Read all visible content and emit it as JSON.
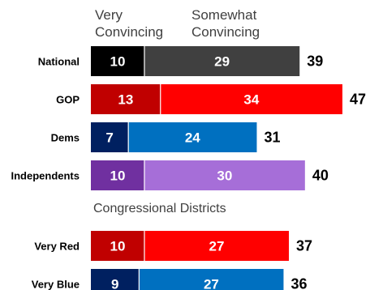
{
  "chart_data": {
    "type": "bar",
    "orientation": "horizontal",
    "stacked": true,
    "legend": {
      "position": "top",
      "entries": [
        {
          "lines": [
            "Very",
            "Convincing"
          ],
          "key": "very"
        },
        {
          "lines": [
            "Somewhat",
            "Convincing"
          ],
          "key": "somewhat"
        }
      ]
    },
    "groups": [
      {
        "title": "",
        "rows": [
          {
            "label": "National",
            "very": 10,
            "somewhat": 29,
            "total": 39,
            "colors": {
              "very": "#000000",
              "somewhat": "#404040"
            }
          },
          {
            "label": "GOP",
            "very": 13,
            "somewhat": 34,
            "total": 47,
            "colors": {
              "very": "#c00000",
              "somewhat": "#ff0000"
            }
          },
          {
            "label": "Dems",
            "very": 7,
            "somewhat": 24,
            "total": 31,
            "colors": {
              "very": "#002060",
              "somewhat": "#0070c0"
            }
          },
          {
            "label": "Independents",
            "very": 10,
            "somewhat": 30,
            "total": 40,
            "colors": {
              "very": "#7030a0",
              "somewhat": "#a66ed8"
            }
          }
        ]
      },
      {
        "title": "Congressional Districts",
        "rows": [
          {
            "label": "Very Red",
            "very": 10,
            "somewhat": 27,
            "total": 37,
            "colors": {
              "very": "#c00000",
              "somewhat": "#ff0000"
            }
          },
          {
            "label": "Very Blue",
            "very": 9,
            "somewhat": 27,
            "total": 36,
            "colors": {
              "very": "#002060",
              "somewhat": "#0070c0"
            }
          }
        ]
      }
    ],
    "xlim": [
      0,
      47
    ],
    "grid": false
  }
}
